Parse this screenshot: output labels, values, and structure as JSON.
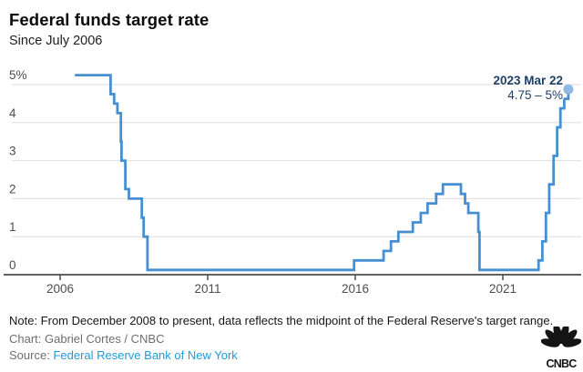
{
  "header": {
    "title": "Federal funds target rate",
    "subtitle": "Since July 2006"
  },
  "chart_data": {
    "type": "line",
    "step": true,
    "title": "Federal funds target rate",
    "subtitle": "Since July 2006",
    "xlabel": "",
    "ylabel": "",
    "x_ticks": [
      2006,
      2011,
      2016,
      2021
    ],
    "x_tick_labels": [
      "2006",
      "2011",
      "2016",
      "2021"
    ],
    "y_ticks": [
      0,
      1,
      2,
      3,
      4,
      5
    ],
    "y_tick_labels": [
      "0",
      "1",
      "2",
      "3",
      "4",
      "5%"
    ],
    "ylim": [
      0,
      5.25
    ],
    "grid": "horizontal",
    "legend": "none",
    "series": [
      {
        "name": "Federal funds target rate (midpoint of target range since Dec 2008)",
        "points": [
          [
            2006.5,
            5.25
          ],
          [
            2007.71,
            4.75
          ],
          [
            2007.83,
            4.5
          ],
          [
            2007.94,
            4.25
          ],
          [
            2008.06,
            3.5
          ],
          [
            2008.08,
            3.0
          ],
          [
            2008.21,
            2.25
          ],
          [
            2008.33,
            2.0
          ],
          [
            2008.77,
            1.5
          ],
          [
            2008.83,
            1.0
          ],
          [
            2008.96,
            0.125
          ],
          [
            2015.96,
            0.375
          ],
          [
            2016.96,
            0.625
          ],
          [
            2017.21,
            0.875
          ],
          [
            2017.46,
            1.125
          ],
          [
            2017.95,
            1.375
          ],
          [
            2018.22,
            1.625
          ],
          [
            2018.45,
            1.875
          ],
          [
            2018.74,
            2.125
          ],
          [
            2018.97,
            2.375
          ],
          [
            2019.58,
            2.125
          ],
          [
            2019.72,
            1.875
          ],
          [
            2019.83,
            1.625
          ],
          [
            2020.17,
            1.125
          ],
          [
            2020.21,
            0.125
          ],
          [
            2022.21,
            0.375
          ],
          [
            2022.34,
            0.875
          ],
          [
            2022.46,
            1.625
          ],
          [
            2022.57,
            2.375
          ],
          [
            2022.72,
            3.125
          ],
          [
            2022.84,
            3.875
          ],
          [
            2022.95,
            4.375
          ],
          [
            2023.08,
            4.625
          ],
          [
            2023.22,
            4.875
          ]
        ]
      }
    ],
    "end_annotation": {
      "date_label": "2023 Mar 22",
      "value_label": "4.75 – 5%",
      "x": 2023.22,
      "y": 4.875
    },
    "colors": {
      "line": "#478fd1",
      "end_dot": "#8fb8e2",
      "annotation_text": "#1e3f66",
      "gridline": "#dedede",
      "axis": "#2e2e2e",
      "tick_label": "#4d4d4d"
    }
  },
  "footer": {
    "note": "Note: From December 2008 to present, data reflects the midpoint of the Federal Reserve's target range.",
    "credit": "Chart: Gabriel Cortes / CNBC",
    "source_label": "Source:",
    "source_link": "Federal Reserve Bank of New York",
    "logo_text": "CNBC"
  }
}
